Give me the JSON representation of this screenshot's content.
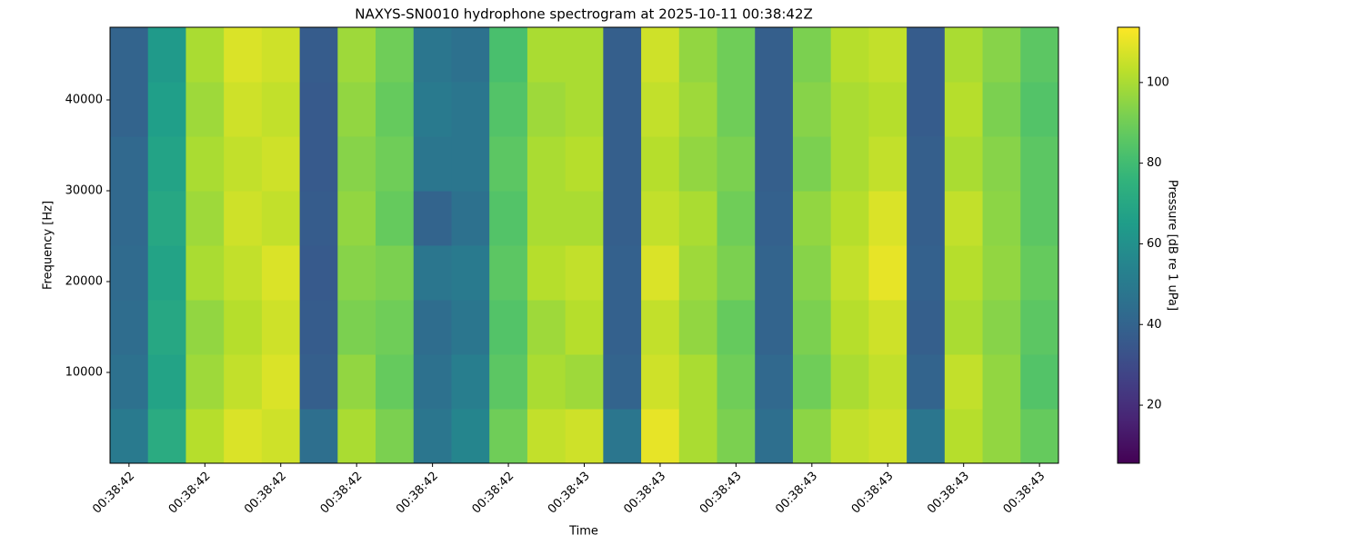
{
  "chart_data": {
    "type": "heatmap",
    "title": "NAXYS-SN0010 hydrophone spectrogram at 2025-10-11 00:38:42Z",
    "x_label": "Time",
    "y_label": "Frequency [Hz]",
    "colorbar_label": "Pressure [dB re 1 uPa]",
    "colormap": "viridis",
    "xlim": [
      -0.5,
      24.5
    ],
    "xticks": [
      {
        "value": 0,
        "label": "00:38:42"
      },
      {
        "value": 2,
        "label": "00:38:42"
      },
      {
        "value": 4,
        "label": "00:38:42"
      },
      {
        "value": 6,
        "label": "00:38:42"
      },
      {
        "value": 8,
        "label": "00:38:42"
      },
      {
        "value": 10,
        "label": "00:38:42"
      },
      {
        "value": 12,
        "label": "00:38:43"
      },
      {
        "value": 14,
        "label": "00:38:43"
      },
      {
        "value": 16,
        "label": "00:38:43"
      },
      {
        "value": 18,
        "label": "00:38:43"
      },
      {
        "value": 20,
        "label": "00:38:43"
      },
      {
        "value": 22,
        "label": "00:38:43"
      },
      {
        "value": 24,
        "label": "00:38:43"
      }
    ],
    "ylim": [
      0,
      48000
    ],
    "yticks": [
      10000,
      20000,
      30000,
      40000
    ],
    "clim": [
      5.6,
      113.7
    ],
    "cticks": [
      20,
      40,
      60,
      80,
      100
    ],
    "z": [
      [
        50,
        72,
        102,
        108,
        106,
        45,
        100,
        92,
        48,
        55,
        90,
        104,
        106,
        48,
        110,
        100,
        92,
        45,
        95,
        104,
        106,
        48,
        102,
        96,
        88
      ],
      [
        46,
        68,
        98,
        104,
        108,
        38,
        96,
        88,
        46,
        52,
        86,
        100,
        98,
        40,
        106,
        100,
        90,
        42,
        90,
        100,
        104,
        40,
        104,
        96,
        84
      ],
      [
        44,
        70,
        96,
        102,
        106,
        37,
        92,
        90,
        44,
        48,
        84,
        98,
        102,
        39,
        104,
        96,
        88,
        40,
        92,
        102,
        106,
        38,
        100,
        94,
        86
      ],
      [
        43,
        68,
        100,
        104,
        108,
        36,
        94,
        92,
        48,
        50,
        86,
        102,
        104,
        39,
        108,
        98,
        92,
        40,
        94,
        104,
        110,
        39,
        102,
        96,
        88
      ],
      [
        42,
        70,
        98,
        106,
        104,
        37,
        96,
        88,
        40,
        46,
        84,
        100,
        100,
        38,
        104,
        100,
        90,
        39,
        96,
        102,
        108,
        38,
        104,
        95,
        86
      ],
      [
        42,
        68,
        100,
        104,
        106,
        36,
        94,
        90,
        48,
        48,
        86,
        100,
        102,
        38,
        102,
        96,
        92,
        38,
        92,
        100,
        104,
        38,
        100,
        94,
        86
      ],
      [
        40,
        66,
        98,
        106,
        104,
        36,
        96,
        88,
        50,
        48,
        84,
        98,
        100,
        38,
        104,
        98,
        90,
        38,
        94,
        100,
        102,
        37,
        102,
        92,
        84
      ],
      [
        40,
        64,
        100,
        108,
        106,
        37,
        98,
        90,
        48,
        46,
        82,
        100,
        100,
        38,
        106,
        96,
        90,
        38,
        92,
        102,
        104,
        37,
        100,
        94,
        86
      ]
    ]
  }
}
